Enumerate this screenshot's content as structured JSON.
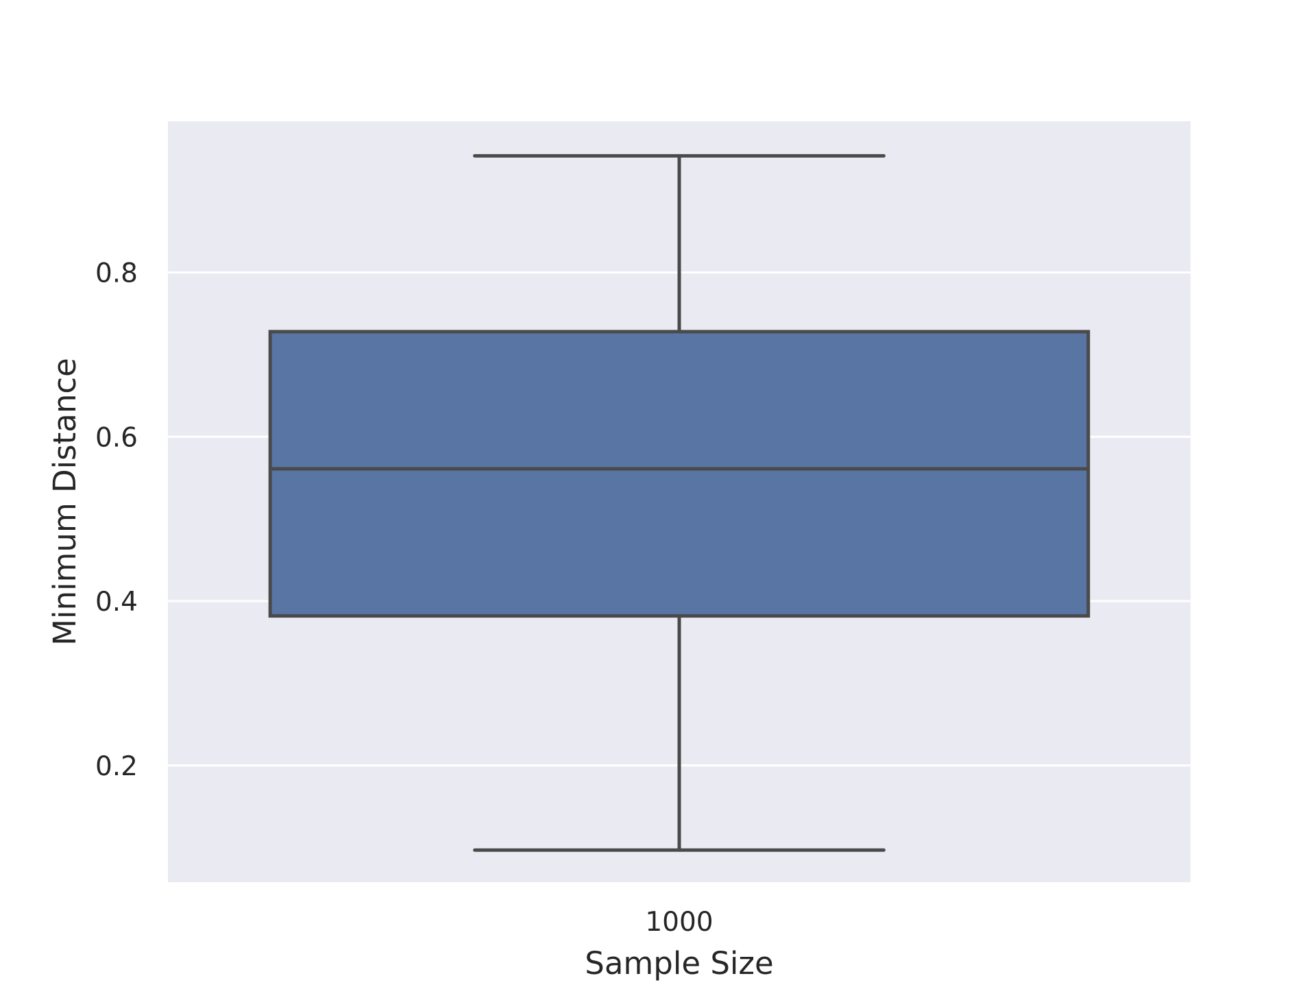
{
  "chart_data": {
    "type": "box",
    "xlabel": "Sample Size",
    "ylabel": "Minimum Distance",
    "categories": [
      "1000"
    ],
    "boxes": [
      {
        "category": "1000",
        "whisker_low": 0.097,
        "q1": 0.382,
        "median": 0.561,
        "q3": 0.728,
        "whisker_high": 0.942
      }
    ],
    "yticks": [
      {
        "value": 0.2,
        "label": "0.2"
      },
      {
        "value": 0.4,
        "label": "0.4"
      },
      {
        "value": 0.6,
        "label": "0.6"
      },
      {
        "value": 0.8,
        "label": "0.8"
      }
    ],
    "ylim": [
      0.058,
      0.984
    ],
    "grid": true,
    "colors": {
      "plot_background": "#EAEAF2",
      "box_fill": "#5975A4",
      "box_edge": "#4A4A4A",
      "grid": "#FFFFFF",
      "text": "#262626"
    }
  }
}
